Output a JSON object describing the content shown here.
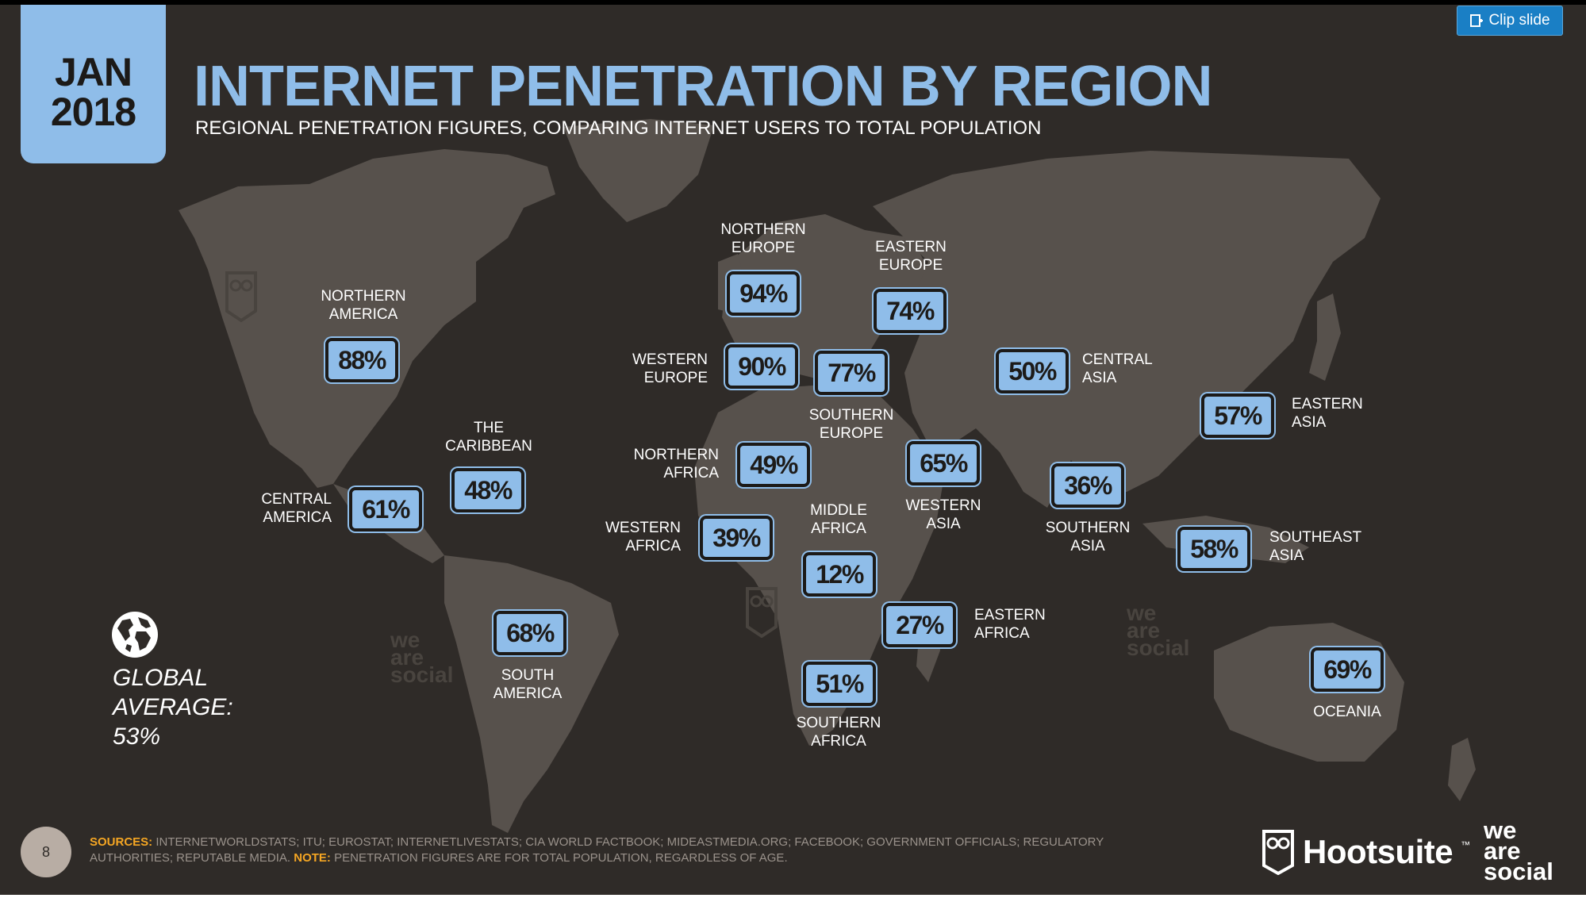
{
  "header": {
    "date_month": "JAN",
    "date_year": "2018",
    "title": "INTERNET PENETRATION BY REGION",
    "subtitle": "REGIONAL PENETRATION FIGURES, COMPARING INTERNET USERS TO TOTAL POPULATION"
  },
  "toolbar": {
    "clip_label": "Clip slide"
  },
  "regions": [
    {
      "id": "northern-america",
      "name": "NORTHERN\nAMERICA",
      "value": "88%"
    },
    {
      "id": "central-america",
      "name": "CENTRAL\nAMERICA",
      "value": "61%"
    },
    {
      "id": "caribbean",
      "name": "THE\nCARIBBEAN",
      "value": "48%"
    },
    {
      "id": "south-america",
      "name": "SOUTH\nAMERICA",
      "value": "68%"
    },
    {
      "id": "northern-europe",
      "name": "NORTHERN\nEUROPE",
      "value": "94%"
    },
    {
      "id": "western-europe",
      "name": "WESTERN\nEUROPE",
      "value": "90%"
    },
    {
      "id": "southern-europe",
      "name": "SOUTHERN\nEUROPE",
      "value": "77%"
    },
    {
      "id": "eastern-europe",
      "name": "EASTERN\nEUROPE",
      "value": "74%"
    },
    {
      "id": "northern-africa",
      "name": "NORTHERN\nAFRICA",
      "value": "49%"
    },
    {
      "id": "western-africa",
      "name": "WESTERN\nAFRICA",
      "value": "39%"
    },
    {
      "id": "middle-africa",
      "name": "MIDDLE\nAFRICA",
      "value": "12%"
    },
    {
      "id": "eastern-africa",
      "name": "EASTERN\nAFRICA",
      "value": "27%"
    },
    {
      "id": "southern-africa",
      "name": "SOUTHERN\nAFRICA",
      "value": "51%"
    },
    {
      "id": "western-asia",
      "name": "WESTERN\nASIA",
      "value": "65%"
    },
    {
      "id": "central-asia",
      "name": "CENTRAL\nASIA",
      "value": "50%"
    },
    {
      "id": "southern-asia",
      "name": "SOUTHERN\nASIA",
      "value": "36%"
    },
    {
      "id": "eastern-asia",
      "name": "EASTERN\nASIA",
      "value": "57%"
    },
    {
      "id": "southeast-asia",
      "name": "SOUTHEAST\nASIA",
      "value": "58%"
    },
    {
      "id": "oceania",
      "name": "OCEANIA",
      "value": "69%"
    }
  ],
  "global": {
    "label": "GLOBAL\nAVERAGE:",
    "value": "53%",
    "icon": "globe-icon"
  },
  "watermarks": {
    "we_are_social": "we\nare\nsocial"
  },
  "footer": {
    "page_number": "8",
    "sources_label": "SOURCES:",
    "sources_text": " INTERNETWORLDSTATS; ITU; EUROSTAT; INTERNETLIVESTATS; CIA WORLD FACTBOOK; MIDEASTMEDIA.ORG; FACEBOOK; GOVERNMENT OFFICIALS; REGULATORY AUTHORITIES; REPUTABLE MEDIA. ",
    "note_label": "NOTE:",
    "note_text": " PENETRATION FIGURES ARE FOR TOTAL POPULATION, REGARDLESS OF AGE.",
    "hootsuite": "Hootsuite",
    "hootsuite_tm": "™",
    "we_are_social_logo": "we\nare\nsocial"
  },
  "colors": {
    "background": "#2f2b28",
    "land": "#57514c",
    "accent": "#8fbde9",
    "clip_button": "#1a7fc5",
    "sources_highlight": "#f5a623"
  }
}
